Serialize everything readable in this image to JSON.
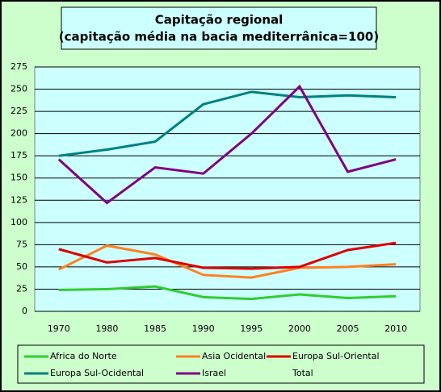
{
  "chart_data": {
    "type": "line",
    "title": [
      "Capitação regional",
      "(capitação média na bacia mediterrânica=100)"
    ],
    "categories": [
      "1970",
      "1980",
      "1985",
      "1990",
      "1995",
      "2000",
      "2005",
      "2010"
    ],
    "series": [
      {
        "name": "Africa do Norte",
        "color": "#33cc33",
        "values": [
          24,
          25,
          28,
          16,
          14,
          19,
          15,
          17
        ]
      },
      {
        "name": "Asia Ocidental",
        "color": "#ff8020",
        "values": [
          47,
          74,
          64,
          41,
          38,
          49,
          50,
          53
        ]
      },
      {
        "name": "Europa Sul-Oriental",
        "color": "#dd0000",
        "values": [
          70,
          55,
          60,
          49,
          48,
          50,
          69,
          77
        ]
      },
      {
        "name": "Europa Sul-Ocidental",
        "color": "#008080",
        "values": [
          175,
          182,
          191,
          233,
          247,
          241,
          243,
          241
        ]
      },
      {
        "name": "Israel",
        "color": "#800080",
        "values": [
          171,
          122,
          162,
          155,
          200,
          253,
          157,
          171
        ]
      },
      {
        "name": "Total",
        "values": [
          null,
          null,
          null,
          null,
          null,
          null,
          null,
          null
        ]
      }
    ],
    "ylim": [
      0,
      275
    ],
    "yticks": [
      0,
      25,
      50,
      75,
      100,
      125,
      150,
      175,
      200,
      225,
      250,
      275
    ],
    "grid": true
  }
}
